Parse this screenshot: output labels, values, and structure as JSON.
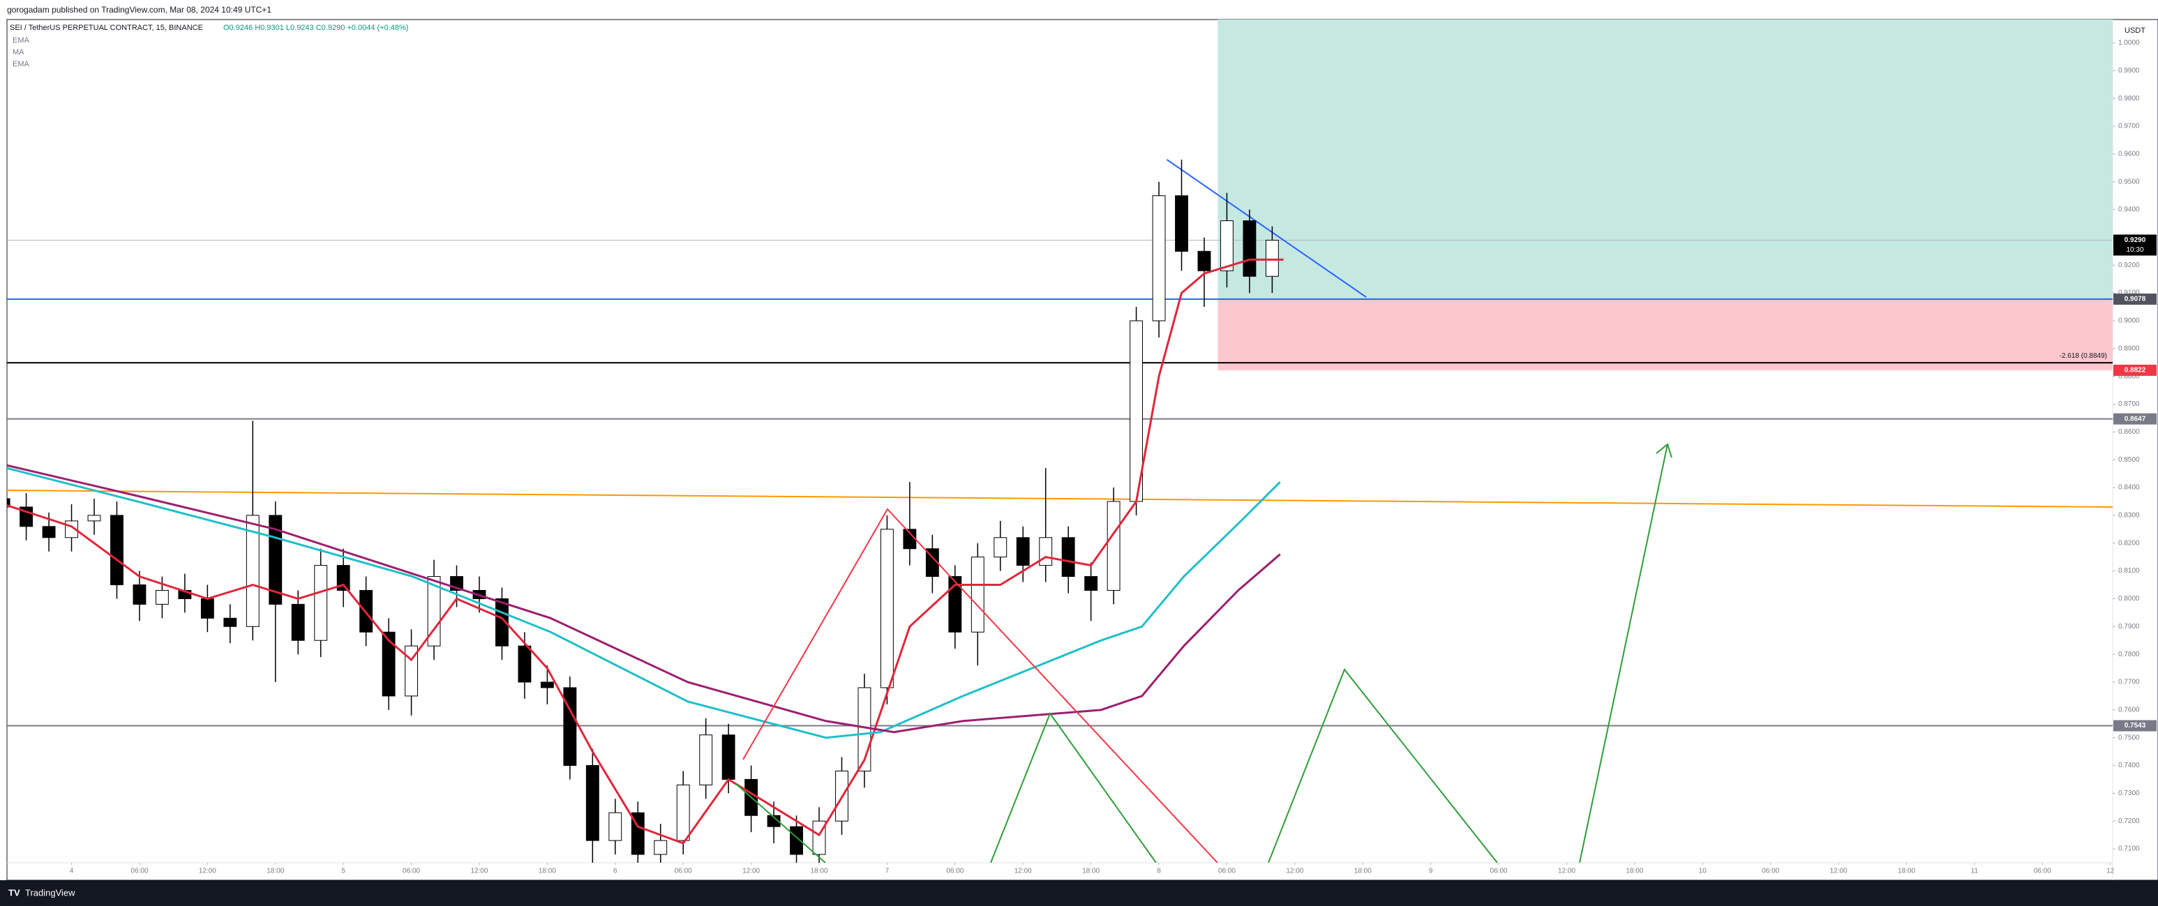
{
  "header": {
    "published": "gorogadam published on TradingView.com, Mar 08, 2024 10:49 UTC+1",
    "symbol": "SEI / TetherUS PERPETUAL CONTRACT, 15, BINANCE",
    "ohlc": "O0.9246 H0.9301 L0.9243 C0.9290 +0.0044 (+0.48%)",
    "currency": "USDT",
    "brand": "TradingView"
  },
  "chart_data": {
    "type": "candlestick",
    "x": [
      -6,
      -4,
      -2,
      0,
      2,
      4,
      6,
      8,
      10,
      12,
      14,
      16,
      18,
      20,
      22,
      24,
      26,
      28,
      30,
      32,
      34,
      36,
      38,
      40,
      42,
      44,
      46,
      48,
      50,
      52,
      54,
      56,
      58,
      60,
      62,
      64,
      66,
      68,
      70,
      72,
      74,
      76,
      78,
      80,
      82,
      84,
      86,
      88,
      90,
      92,
      94,
      96,
      98,
      100,
      102,
      104,
      106
    ],
    "open": [
      0.836,
      0.833,
      0.826,
      0.822,
      0.828,
      0.83,
      0.805,
      0.798,
      0.803,
      0.8,
      0.793,
      0.79,
      0.83,
      0.798,
      0.785,
      0.812,
      0.803,
      0.788,
      0.765,
      0.783,
      0.808,
      0.803,
      0.8,
      0.783,
      0.77,
      0.768,
      0.74,
      0.713,
      0.723,
      0.708,
      0.713,
      0.733,
      0.751,
      0.735,
      0.722,
      0.718,
      0.708,
      0.72,
      0.738,
      0.768,
      0.825,
      0.818,
      0.808,
      0.788,
      0.815,
      0.822,
      0.812,
      0.822,
      0.808,
      0.803,
      0.835,
      0.9,
      0.945,
      0.925,
      0.918,
      0.936,
      0.916
    ],
    "high": [
      0.84,
      0.838,
      0.831,
      0.834,
      0.836,
      0.835,
      0.81,
      0.808,
      0.809,
      0.805,
      0.798,
      0.864,
      0.835,
      0.803,
      0.818,
      0.818,
      0.808,
      0.793,
      0.789,
      0.814,
      0.812,
      0.808,
      0.804,
      0.788,
      0.776,
      0.772,
      0.746,
      0.728,
      0.727,
      0.719,
      0.738,
      0.757,
      0.755,
      0.74,
      0.727,
      0.722,
      0.725,
      0.743,
      0.773,
      0.83,
      0.842,
      0.823,
      0.812,
      0.82,
      0.828,
      0.826,
      0.847,
      0.826,
      0.813,
      0.84,
      0.905,
      0.95,
      0.958,
      0.93,
      0.946,
      0.94,
      0.934
    ],
    "low": [
      0.828,
      0.821,
      0.817,
      0.817,
      0.823,
      0.8,
      0.792,
      0.793,
      0.795,
      0.788,
      0.784,
      0.785,
      0.77,
      0.78,
      0.779,
      0.797,
      0.783,
      0.76,
      0.758,
      0.778,
      0.797,
      0.795,
      0.778,
      0.764,
      0.762,
      0.735,
      0.705,
      0.708,
      0.702,
      0.703,
      0.708,
      0.728,
      0.73,
      0.716,
      0.712,
      0.703,
      0.703,
      0.715,
      0.732,
      0.762,
      0.812,
      0.802,
      0.782,
      0.776,
      0.81,
      0.806,
      0.806,
      0.802,
      0.792,
      0.798,
      0.83,
      0.894,
      0.918,
      0.905,
      0.912,
      0.91,
      0.91
    ],
    "close": [
      0.833,
      0.826,
      0.822,
      0.828,
      0.83,
      0.805,
      0.798,
      0.803,
      0.8,
      0.793,
      0.79,
      0.83,
      0.798,
      0.785,
      0.812,
      0.803,
      0.788,
      0.765,
      0.783,
      0.808,
      0.803,
      0.8,
      0.783,
      0.77,
      0.768,
      0.74,
      0.713,
      0.723,
      0.708,
      0.713,
      0.733,
      0.751,
      0.735,
      0.722,
      0.718,
      0.708,
      0.72,
      0.738,
      0.768,
      0.825,
      0.818,
      0.808,
      0.788,
      0.815,
      0.822,
      0.812,
      0.822,
      0.808,
      0.803,
      0.835,
      0.9,
      0.945,
      0.925,
      0.918,
      0.936,
      0.916,
      0.929
    ],
    "up_color": "#ffffff",
    "down_color": "#000000",
    "series": [
      {
        "name": "EMA",
        "color": "#e0263a",
        "x": [
          -6,
          0,
          6,
          12,
          16,
          20,
          24,
          28,
          30,
          34,
          38,
          42,
          46,
          50,
          54,
          58,
          62,
          66,
          70,
          74,
          78,
          82,
          86,
          90,
          94,
          96,
          98,
          100,
          104,
          107
        ],
        "values": [
          0.834,
          0.826,
          0.808,
          0.8,
          0.805,
          0.8,
          0.805,
          0.785,
          0.778,
          0.8,
          0.793,
          0.775,
          0.745,
          0.718,
          0.712,
          0.735,
          0.725,
          0.715,
          0.742,
          0.79,
          0.805,
          0.805,
          0.815,
          0.812,
          0.835,
          0.88,
          0.91,
          0.917,
          0.922,
          0.922
        ]
      },
      {
        "name": "MA",
        "color": "#1fbfc9",
        "x": [
          -5.7,
          5.8,
          18,
          30.1,
          42.3,
          54.4,
          66.6,
          71.4,
          78.7,
          90.9,
          94.5,
          98.2,
          103,
          106.7
        ],
        "values": [
          0.847,
          0.835,
          0.822,
          0.808,
          0.788,
          0.763,
          0.75,
          0.752,
          0.765,
          0.785,
          0.79,
          0.808,
          0.827,
          0.842
        ]
      },
      {
        "name": "EMA",
        "color": "#9c1f6e",
        "x": [
          -5.7,
          5.8,
          18,
          30.1,
          42.3,
          54.4,
          66.6,
          72.6,
          78.7,
          90.9,
          94.5,
          98.2,
          103,
          106.7
        ],
        "values": [
          0.848,
          0.837,
          0.825,
          0.809,
          0.793,
          0.77,
          0.756,
          0.752,
          0.756,
          0.76,
          0.765,
          0.783,
          0.803,
          0.816
        ]
      }
    ],
    "trendlines": [
      {
        "color": "#ff9800",
        "x": [
          -5.7,
          180.2
        ],
        "values": [
          0.839,
          0.833
        ]
      },
      {
        "color": "#2962ff",
        "x": [
          96.7,
          114.3
        ],
        "values": [
          0.958,
          0.9085
        ]
      }
    ],
    "hlines": [
      {
        "value": 0.929,
        "label": "0.9290",
        "color": "#b2b5be",
        "label_position": "axis",
        "tag_color": "#000000"
      },
      {
        "value": 0.9078,
        "label": "0.9078",
        "color": "#2962ff",
        "label_position": "axis",
        "tag_color": "#50535e"
      },
      {
        "value": 0.8849,
        "label": "-2.618 (0.8849)",
        "color": "#000000",
        "label_position": "chart"
      },
      {
        "value": 0.8647,
        "label": "0.8647",
        "color": "#787b86",
        "label_position": "axis",
        "tag_color": "#787b86"
      },
      {
        "value": 0.7543,
        "label": "0.7543",
        "color": "#787b86",
        "label_position": "axis",
        "tag_color": "#787b86"
      }
    ],
    "countdown": "10:30",
    "position": {
      "x": [
        101.2,
        180.2
      ],
      "entry": 0.9078,
      "target": 1.01,
      "stop": {
        "value": 0.8822,
        "label": "0.8822"
      },
      "profit_color": "#c5e8e1",
      "loss_color": "#fcc8cd",
      "stop_tag_color": "#f23645"
    },
    "xlim": [
      -5.7,
      180.2
    ],
    "ylim": [
      0.705,
      1.0084
    ],
    "grid": false,
    "xticks": [
      {
        "value": 0,
        "label": "4"
      },
      {
        "value": 6,
        "label": "06:00"
      },
      {
        "value": 12,
        "label": "12:00"
      },
      {
        "value": 18,
        "label": "18:00"
      },
      {
        "value": 24,
        "label": "5"
      },
      {
        "value": 30,
        "label": "06:00"
      },
      {
        "value": 36,
        "label": "12:00"
      },
      {
        "value": 42,
        "label": "18:00"
      },
      {
        "value": 48,
        "label": "6"
      },
      {
        "value": 54,
        "label": "06:00"
      },
      {
        "value": 60,
        "label": "12:00"
      },
      {
        "value": 66,
        "label": "18:00"
      },
      {
        "value": 72,
        "label": "7"
      },
      {
        "value": 78,
        "label": "06:00"
      },
      {
        "value": 84,
        "label": "12:00"
      },
      {
        "value": 90,
        "label": "18:00"
      },
      {
        "value": 96,
        "label": "8"
      },
      {
        "value": 102,
        "label": "06:00"
      },
      {
        "value": 108,
        "label": "12:00"
      },
      {
        "value": 114,
        "label": "18:00"
      },
      {
        "value": 120,
        "label": "9"
      },
      {
        "value": 126,
        "label": "06:00"
      },
      {
        "value": 132,
        "label": "12:00"
      },
      {
        "value": 138,
        "label": "18:00"
      },
      {
        "value": 144,
        "label": "10"
      },
      {
        "value": 150,
        "label": "06:00"
      },
      {
        "value": 156,
        "label": "12:00"
      },
      {
        "value": 162,
        "label": "18:00"
      },
      {
        "value": 168,
        "label": "11"
      },
      {
        "value": 174,
        "label": "06:00"
      },
      {
        "value": 180,
        "label": "12"
      }
    ],
    "yticks": [
      {
        "value": 0.71,
        "label": "0.7100"
      },
      {
        "value": 0.72,
        "label": "0.7200"
      },
      {
        "value": 0.73,
        "label": "0.7300"
      },
      {
        "value": 0.74,
        "label": "0.7400"
      },
      {
        "value": 0.75,
        "label": "0.7500"
      },
      {
        "value": 0.76,
        "label": "0.7600"
      },
      {
        "value": 0.77,
        "label": "0.7700"
      },
      {
        "value": 0.78,
        "label": "0.7800"
      },
      {
        "value": 0.79,
        "label": "0.7900"
      },
      {
        "value": 0.8,
        "label": "0.8000"
      },
      {
        "value": 0.81,
        "label": "0.8100"
      },
      {
        "value": 0.82,
        "label": "0.8200"
      },
      {
        "value": 0.83,
        "label": "0.8300"
      },
      {
        "value": 0.84,
        "label": "0.8400"
      },
      {
        "value": 0.85,
        "label": "0.8500"
      },
      {
        "value": 0.86,
        "label": "0.8600"
      },
      {
        "value": 0.87,
        "label": "0.8700"
      },
      {
        "value": 0.88,
        "label": "0.8800"
      },
      {
        "value": 0.89,
        "label": "0.8900"
      },
      {
        "value": 0.9,
        "label": "0.9000"
      },
      {
        "value": 0.91,
        "label": "0.9100"
      },
      {
        "value": 0.92,
        "label": "0.9200"
      },
      {
        "value": 0.93,
        "label": "0.9300"
      },
      {
        "value": 0.94,
        "label": "0.9400"
      },
      {
        "value": 0.95,
        "label": "0.9500"
      },
      {
        "value": 0.96,
        "label": "0.9600"
      },
      {
        "value": 0.97,
        "label": "0.9700"
      },
      {
        "value": 0.98,
        "label": "0.9800"
      },
      {
        "value": 0.99,
        "label": "0.9900"
      },
      {
        "value": 1.0,
        "label": "1.0000"
      }
    ]
  }
}
